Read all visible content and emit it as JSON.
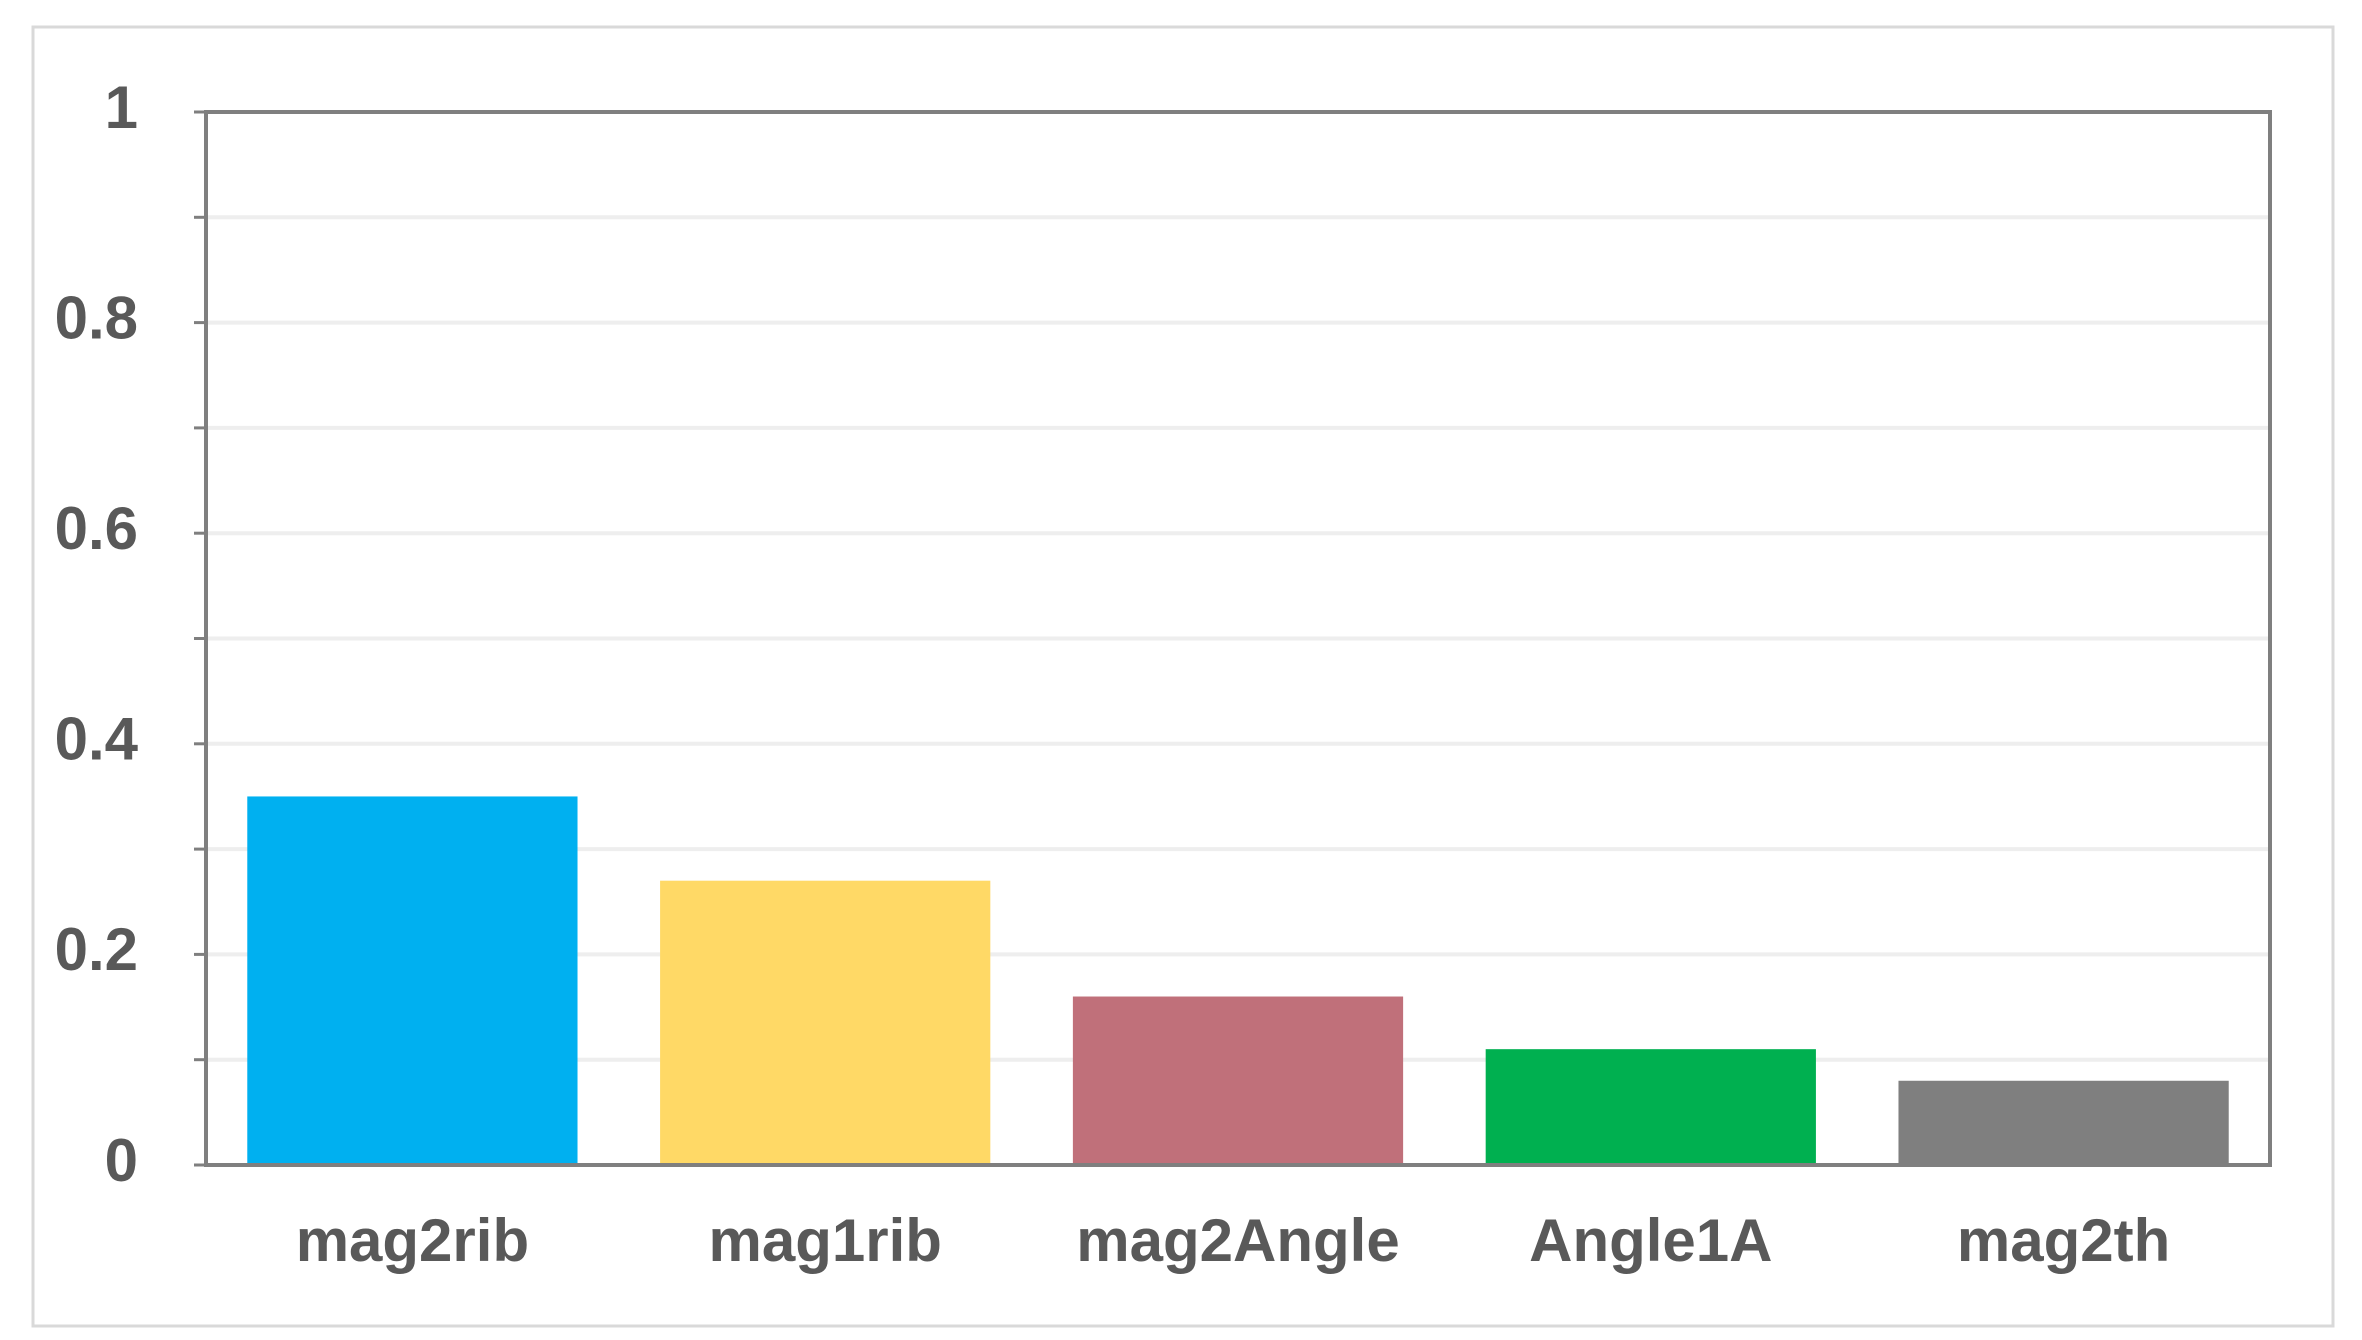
{
  "chart_data": {
    "type": "bar",
    "categories": [
      "mag2rib",
      "mag1rib",
      "mag2Angle",
      "Angle1A",
      "mag2th"
    ],
    "values": [
      0.35,
      0.27,
      0.16,
      0.11,
      0.08
    ],
    "colors": [
      "#00b0f0",
      "#ffd966",
      "#c0707a",
      "#00b050",
      "#7f7f7f"
    ],
    "ylim": [
      0,
      1
    ],
    "yticks": [
      0,
      0.2,
      0.4,
      0.6,
      0.8,
      1
    ],
    "minor_yticks": [
      0.1,
      0.3,
      0.5,
      0.7,
      0.9
    ],
    "grid": true
  }
}
